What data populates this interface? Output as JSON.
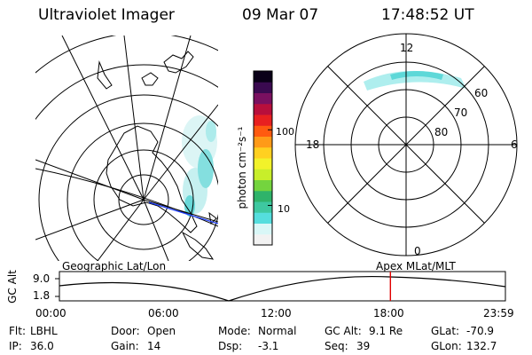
{
  "header": {
    "instrument": "Ultraviolet Imager",
    "date": "09 Mar 07",
    "time": "17:48:52 UT"
  },
  "colorbar": {
    "unit_label": "photon cm⁻²s⁻¹",
    "ticks": [
      {
        "label": "100",
        "value": 100
      },
      {
        "label": "10",
        "value": 10
      }
    ],
    "range": [
      3,
      600
    ],
    "colors": [
      "#f2f2f2",
      "#d9f7f7",
      "#55dede",
      "#3ec8a0",
      "#2fb36a",
      "#74d43e",
      "#c8ee2a",
      "#f2f22a",
      "#ffd020",
      "#ff9a18",
      "#ff5a10",
      "#e82020",
      "#b80f3c",
      "#7a1060",
      "#3a0a50",
      "#0a0018"
    ]
  },
  "left_panel": {
    "label": "Geographic Lat/Lon"
  },
  "right_panel": {
    "label": "Apex MLat/MLT",
    "mlt_labels": {
      "top": "12",
      "left": "18",
      "right": "6",
      "bottom": "0"
    },
    "lat_labels": [
      "60",
      "70",
      "80"
    ]
  },
  "timeline": {
    "ylabel": "GC Alt",
    "y_ticks": [
      "9.0",
      "1.8"
    ],
    "x_ticks": [
      "00:00",
      "06:00",
      "12:00",
      "18:00",
      "23:59"
    ],
    "marker_time": "17:48",
    "marker_color": "#e00000"
  },
  "status": {
    "row1": [
      {
        "key": "Flt:",
        "value": "LBHL"
      },
      {
        "key": "Door:",
        "value": "Open"
      },
      {
        "key": "Mode:",
        "value": "Normal"
      },
      {
        "key": "GC Alt:",
        "value": "9.1 Re"
      },
      {
        "key": "GLat:",
        "value": "-70.9"
      }
    ],
    "row2": [
      {
        "key": "IP:",
        "value": "36.0"
      },
      {
        "key": "Gain:",
        "value": "14"
      },
      {
        "key": "Dsp:",
        "value": "-3.1"
      },
      {
        "key": "Seq:",
        "value": "39"
      },
      {
        "key": "GLon:",
        "value": "132.7"
      }
    ]
  }
}
